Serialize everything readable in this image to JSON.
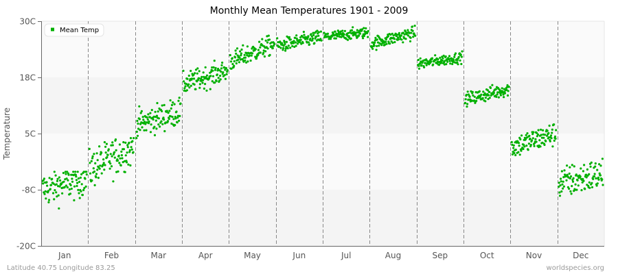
{
  "chart_data": {
    "type": "scatter",
    "title": "Monthly Mean Temperatures 1901 - 2009",
    "xlabel": "",
    "ylabel": "Temperature",
    "ylim": [
      -20,
      30
    ],
    "yticks": [
      "30C",
      "18C",
      "5C",
      "-8C",
      "-20C"
    ],
    "ytick_values": [
      30,
      17.5,
      5,
      -7.5,
      -20
    ],
    "categories": [
      "Jan",
      "Feb",
      "Mar",
      "Apr",
      "May",
      "Jun",
      "Jul",
      "Aug",
      "Sep",
      "Oct",
      "Nov",
      "Dec"
    ],
    "grid": {
      "vertical_dashed_month_separators": true,
      "horizontal_bands": true
    },
    "legend": {
      "position": "top-left",
      "entries": [
        "Mean Temp"
      ]
    },
    "series": [
      {
        "name": "Mean Temp",
        "color": "#00b000",
        "points_per_month": 109,
        "month_ranges": [
          {
            "month": "Jan",
            "start_mean": -7.5,
            "end_mean": -5,
            "spread": 3.2,
            "min": -12,
            "max": -3.5
          },
          {
            "month": "Feb",
            "start_mean": -3,
            "end_mean": 2,
            "spread": 3.5,
            "min": -8,
            "max": 4
          },
          {
            "month": "Mar",
            "start_mean": 7,
            "end_mean": 10,
            "spread": 2.6,
            "min": 4,
            "max": 13
          },
          {
            "month": "Apr",
            "start_mean": 16,
            "end_mean": 19,
            "spread": 2,
            "min": 13,
            "max": 22
          },
          {
            "month": "May",
            "start_mean": 21,
            "end_mean": 25,
            "spread": 1.8,
            "min": 18,
            "max": 27
          },
          {
            "month": "Jun",
            "start_mean": 24.5,
            "end_mean": 26.5,
            "spread": 1.3,
            "min": 22,
            "max": 28
          },
          {
            "month": "Jul",
            "start_mean": 26.5,
            "end_mean": 27.5,
            "spread": 1,
            "min": 24,
            "max": 30
          },
          {
            "month": "Aug",
            "start_mean": 25,
            "end_mean": 27.5,
            "spread": 1.2,
            "min": 22.5,
            "max": 29
          },
          {
            "month": "Sep",
            "start_mean": 20.5,
            "end_mean": 22,
            "spread": 1,
            "min": 18.5,
            "max": 24
          },
          {
            "month": "Oct",
            "start_mean": 12.5,
            "end_mean": 15,
            "spread": 1.3,
            "min": 11,
            "max": 17
          },
          {
            "month": "Nov",
            "start_mean": 2,
            "end_mean": 5,
            "spread": 2.2,
            "min": -2.5,
            "max": 9
          },
          {
            "month": "Dec",
            "start_mean": -6,
            "end_mean": -4,
            "spread": 3,
            "min": -12,
            "max": 0.5
          }
        ]
      }
    ]
  },
  "footer": {
    "location": "Latitude 40.75 Longitude 83.25",
    "source": "worldspecies.org"
  },
  "colors": {
    "point": "#00b000",
    "band_light": "#fafafa",
    "band_dark": "#f4f4f4",
    "axis": "#666666",
    "separator": "#888888"
  }
}
